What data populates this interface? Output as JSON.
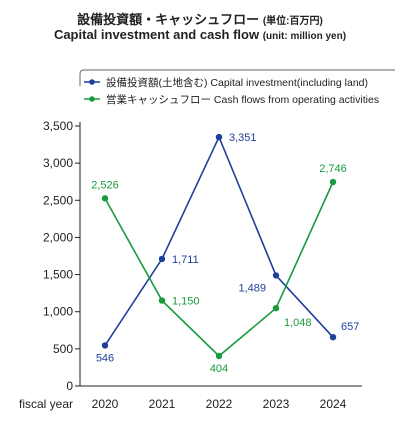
{
  "header": {
    "title_jp": "設備投資額・キャッシュフロー",
    "unit_jp": "(単位:百万円)",
    "title_en": "Capital investment and cash flow",
    "unit_en": "(unit: million yen)"
  },
  "chart_data": {
    "type": "line",
    "xlabel": "fiscal year",
    "categories": [
      "2020",
      "2021",
      "2022",
      "2023",
      "2024"
    ],
    "ylim": [
      0,
      3500
    ],
    "yticks": [
      "0",
      "500",
      "1,000",
      "1,500",
      "2,000",
      "2,500",
      "3,000",
      "3,500"
    ],
    "ytick_values": [
      0,
      500,
      1000,
      1500,
      2000,
      2500,
      3000,
      3500
    ],
    "grid": false,
    "legend_position": "top",
    "series": [
      {
        "name": "設備投資額(土地含む)  Capital investment(including land)",
        "color": "#1f3f9a",
        "values": [
          546,
          1711,
          3351,
          1489,
          657
        ],
        "labels": [
          "546",
          "1,711",
          "3,351",
          "1,489",
          "657"
        ]
      },
      {
        "name": "営業キャッシュフロー  Cash flows from operating activities",
        "color": "#1a9a3e",
        "values": [
          2526,
          1150,
          404,
          1048,
          2746
        ],
        "labels": [
          "2,526",
          "1,150",
          "404",
          "1,048",
          "2,746"
        ]
      }
    ]
  }
}
